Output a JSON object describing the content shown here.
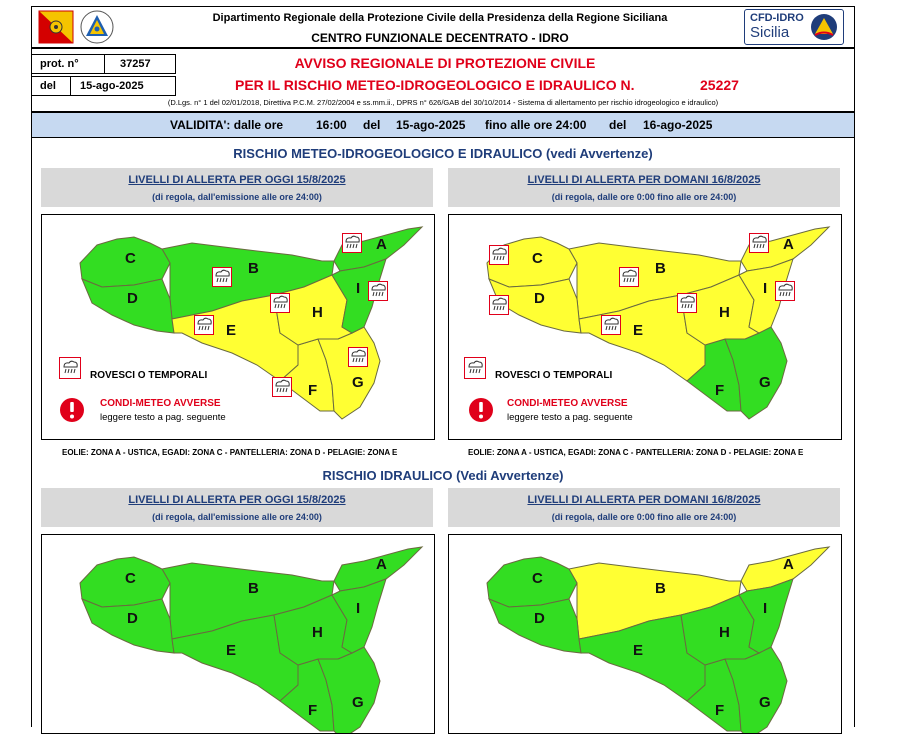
{
  "header": {
    "dept": "Dipartimento Regionale della Protezione Civile della Presidenza della Regione Siciliana",
    "centre": "CENTRO FUNZIONALE DECENTRATO - IDRO",
    "logo_line1": "CFD-IDRO",
    "logo_line2": "Sicilia"
  },
  "protocol": {
    "prot_label": "prot. n°",
    "prot_value": "37257",
    "del_label": "del",
    "del_value": "15-ago-2025"
  },
  "bulletin": {
    "title1": "AVVISO REGIONALE DI PROTEZIONE CIVILE",
    "title2": "PER IL RISCHIO METEO-IDROGEOLOGICO E IDRAULICO N.",
    "number": "25227",
    "legal": "(D.Lgs. n° 1 del 02/01/2018, Direttiva P.C.M. 27/02/2004 e ss.mm.ii., DPRS n° 626/GAB del 30/10/2014 - Sistema di allertamento per rischio idrogeologico e idraulico)"
  },
  "validity": {
    "label": "VALIDITA': dalle ore",
    "from_hour": "16:00",
    "del1": "del",
    "from_date": "15-ago-2025",
    "until_label": "fino alle ore 24:00",
    "del2": "del",
    "to_date": "16-ago-2025"
  },
  "section1": {
    "title": "RISCHIO METEO-IDROGEOLOGICO E IDRAULICO (vedi Avvertenze)",
    "today_title": "LIVELLI DI ALLERTA PER OGGI 15/8/2025",
    "today_sub": "(di regola, dall'emissione alle ore 24:00)",
    "tomorrow_title": "LIVELLI DI ALLERTA PER DOMANI 16/8/2025",
    "tomorrow_sub": "(di regola, dalle ore 0:00 fino alle ore 24:00)",
    "legend_storm": "ROVESCI O TEMPORALI",
    "legend_adverse": "CONDI-METEO AVVERSE",
    "legend_adverse_sub": "leggere testo a pag. seguente",
    "islands": "EOLIE: ZONA A - USTICA, EGADI: ZONA C - PANTELLERIA: ZONA D - PELAGIE: ZONA E"
  },
  "section2": {
    "title": "RISCHIO IDRAULICO (Vedi Avvertenze)",
    "today_title": "LIVELLI DI ALLERTA PER OGGI 15/8/2025",
    "today_sub": "(di regola, dall'emissione alle ore 24:00)",
    "tomorrow_title": "LIVELLI DI ALLERTA PER DOMANI 16/8/2025",
    "tomorrow_sub": "(di regola, dalle ore 0:00 fino alle ore 24:00)"
  },
  "zones": {
    "labels": [
      "A",
      "B",
      "C",
      "D",
      "E",
      "F",
      "G",
      "H",
      "I"
    ]
  },
  "colors": {
    "green": "#33dd22",
    "yellow": "#ffff33",
    "blue_band": "#c6d9f1",
    "red": "#e0001a",
    "navy": "#1f3d7a"
  },
  "maps": {
    "meteo_today": {
      "A": "green",
      "B": "green",
      "C": "green",
      "D": "green",
      "E": "yellow",
      "F": "yellow",
      "G": "yellow",
      "H": "yellow",
      "I": "green"
    },
    "meteo_tomorrow": {
      "A": "yellow",
      "B": "yellow",
      "C": "yellow",
      "D": "yellow",
      "E": "yellow",
      "F": "green",
      "G": "green",
      "H": "yellow",
      "I": "yellow"
    },
    "hydro_today": {
      "A": "green",
      "B": "green",
      "C": "green",
      "D": "green",
      "E": "green",
      "F": "green",
      "G": "green",
      "H": "green",
      "I": "green"
    },
    "hydro_tomorrow": {
      "A": "yellow",
      "B": "yellow",
      "C": "green",
      "D": "green",
      "E": "green",
      "F": "green",
      "G": "green",
      "H": "green",
      "I": "green"
    }
  }
}
